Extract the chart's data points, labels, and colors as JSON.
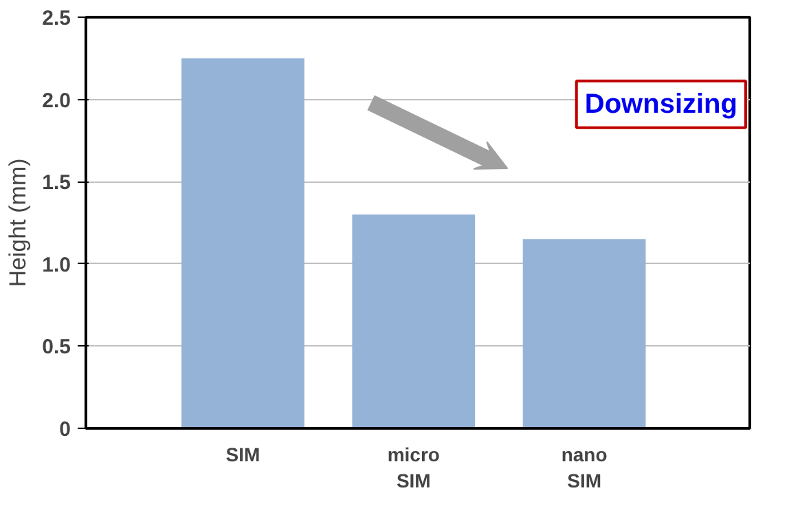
{
  "chart_data": {
    "type": "bar",
    "ylabel": "Height (mm)",
    "categories": [
      "SIM",
      "micro\nSIM",
      "nano\nSIM"
    ],
    "values": [
      2.25,
      1.3,
      1.15
    ],
    "color": "#95b3d7",
    "ylim": [
      0,
      2.5
    ],
    "yticks": [
      0,
      0.5,
      {
        "value": 1,
        "label": "1.0"
      },
      1.5,
      {
        "value": 2,
        "label": "2.0"
      },
      2.5
    ],
    "grid": "y",
    "annotations": [
      "Downsizing"
    ]
  }
}
